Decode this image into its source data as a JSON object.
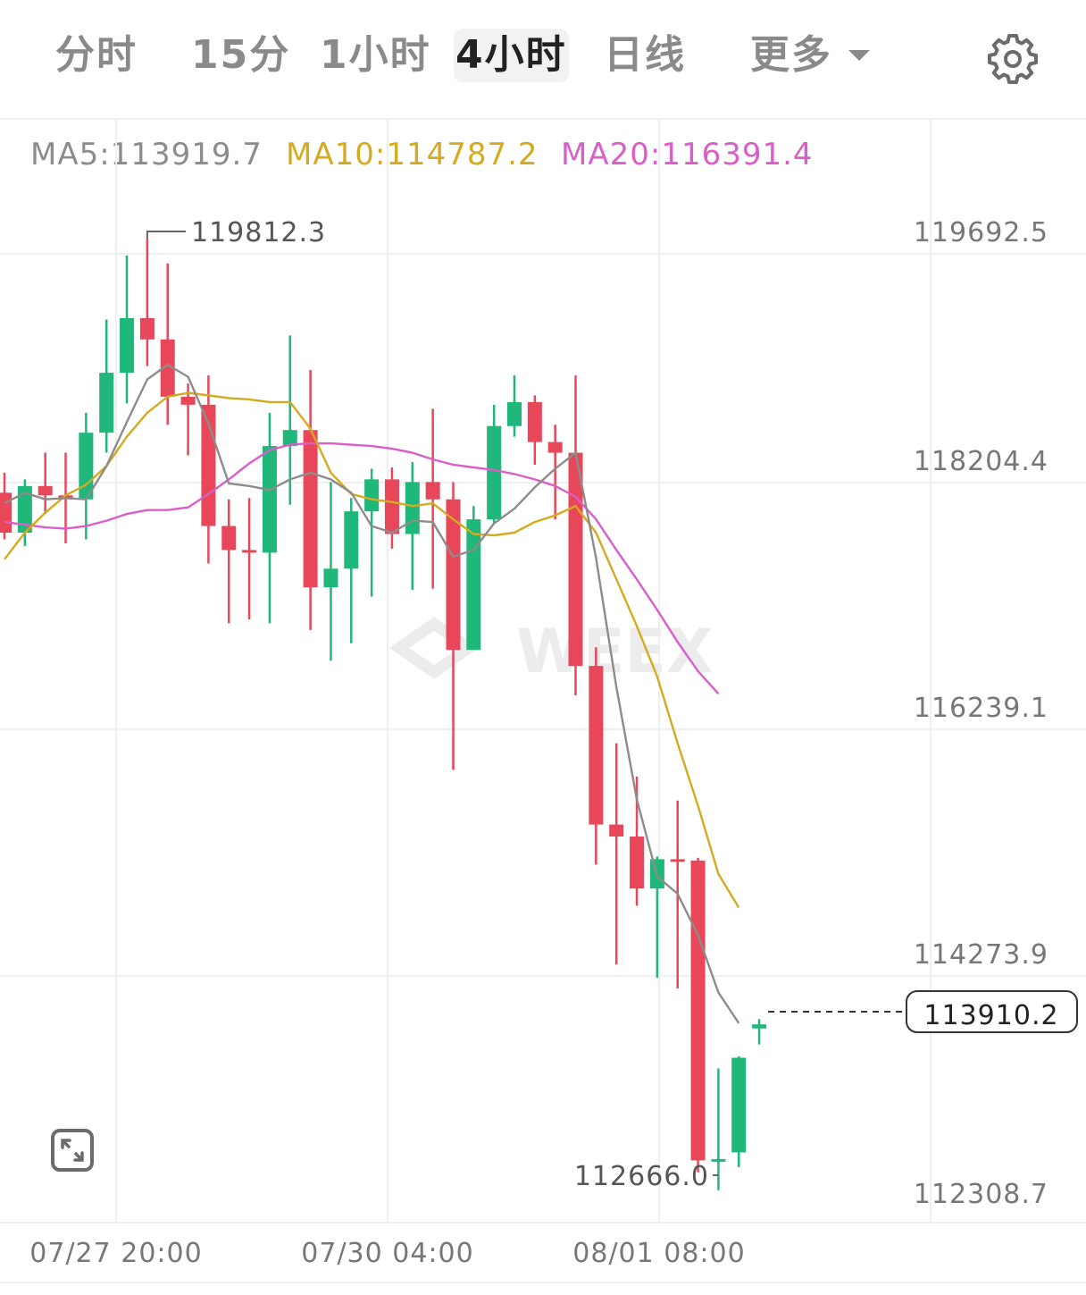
{
  "tabs": [
    {
      "label": "分时",
      "active": false
    },
    {
      "label": "15分",
      "active": false
    },
    {
      "label": "1小时",
      "active": false
    },
    {
      "label": "4小时",
      "active": true
    },
    {
      "label": "日线",
      "active": false
    },
    {
      "label": "更多",
      "active": false
    }
  ],
  "icons": {
    "settings": "gear-icon",
    "expand": "fullscreen-icon",
    "dropdown": "caret-down-icon"
  },
  "legend": {
    "ma5": "MA5:113919.7",
    "ma10": "MA10:114787.2",
    "ma20": "MA20:116391.4"
  },
  "colors": {
    "up": "#1fb77a",
    "down": "#e8475a",
    "ma5": "#8c8c8c",
    "ma10": "#d4ab1f",
    "ma20": "#db5ec8",
    "grid": "#efefef",
    "text": "#666666"
  },
  "chart_data": {
    "type": "candlestick",
    "interval": "4小时",
    "y_ticks": [
      "119692.5",
      "118204.4",
      "116239.1",
      "114273.9",
      "112308.7"
    ],
    "x_ticks": [
      "07/27 20:00",
      "07/30 04:00",
      "08/01 08:00"
    ],
    "high_label": "119812.3",
    "low_label": "112666.0",
    "last_price": "113910.2",
    "ylim": [
      112150,
      120800
    ],
    "candles": [
      {
        "o": 117900,
        "h": 118050,
        "c": 117600,
        "l": 117550
      },
      {
        "o": 117600,
        "h": 118000,
        "c": 117950,
        "l": 117500
      },
      {
        "o": 117950,
        "h": 118200,
        "c": 117880,
        "l": 117740
      },
      {
        "o": 117880,
        "h": 118200,
        "c": 117850,
        "l": 117520
      },
      {
        "o": 117850,
        "h": 118500,
        "c": 118350,
        "l": 117550
      },
      {
        "o": 118350,
        "h": 119200,
        "c": 118800,
        "l": 118200
      },
      {
        "o": 118800,
        "h": 119680,
        "c": 119210,
        "l": 118570
      },
      {
        "o": 119210,
        "h": 119812.3,
        "c": 119050,
        "l": 118850
      },
      {
        "o": 119050,
        "h": 119620,
        "c": 118620,
        "l": 118410
      },
      {
        "o": 118620,
        "h": 118720,
        "c": 118560,
        "l": 118180
      },
      {
        "o": 118560,
        "h": 118780,
        "c": 117650,
        "l": 117370
      },
      {
        "o": 117650,
        "h": 117850,
        "c": 117470,
        "l": 116920
      },
      {
        "o": 117470,
        "h": 117860,
        "c": 117450,
        "l": 116950
      },
      {
        "o": 117450,
        "h": 118500,
        "c": 118250,
        "l": 116920
      },
      {
        "o": 118250,
        "h": 119080,
        "c": 118370,
        "l": 117810
      },
      {
        "o": 118370,
        "h": 118820,
        "c": 117190,
        "l": 116870
      },
      {
        "o": 117190,
        "h": 117980,
        "c": 117330,
        "l": 116640
      },
      {
        "o": 117330,
        "h": 117860,
        "c": 117760,
        "l": 116770
      },
      {
        "o": 117760,
        "h": 118080,
        "c": 118000,
        "l": 117120
      },
      {
        "o": 118000,
        "h": 118090,
        "c": 117590,
        "l": 117480
      },
      {
        "o": 117590,
        "h": 118130,
        "c": 117980,
        "l": 117170
      },
      {
        "o": 117980,
        "h": 118530,
        "c": 117850,
        "l": 117180
      },
      {
        "o": 117850,
        "h": 117980,
        "c": 116720,
        "l": 115820
      },
      {
        "o": 116720,
        "h": 117800,
        "c": 117700,
        "l": 116760
      },
      {
        "o": 117700,
        "h": 118560,
        "c": 118400,
        "l": 117670
      },
      {
        "o": 118400,
        "h": 118780,
        "c": 118580,
        "l": 118320
      },
      {
        "o": 118580,
        "h": 118630,
        "c": 118280,
        "l": 118110
      },
      {
        "o": 118280,
        "h": 118410,
        "c": 118200,
        "l": 117700
      },
      {
        "o": 118200,
        "h": 118780,
        "c": 116600,
        "l": 116380
      },
      {
        "o": 116600,
        "h": 116740,
        "c": 115410,
        "l": 115110
      },
      {
        "o": 115410,
        "h": 116020,
        "c": 115320,
        "l": 114360
      },
      {
        "o": 115320,
        "h": 115770,
        "c": 114930,
        "l": 114800
      },
      {
        "o": 114930,
        "h": 115170,
        "c": 115150,
        "l": 114260
      },
      {
        "o": 115150,
        "h": 115590,
        "c": 115140,
        "l": 114180
      },
      {
        "o": 115140,
        "h": 115160,
        "c": 112890,
        "l": 112800
      },
      {
        "o": 112890,
        "h": 113580,
        "c": 112900,
        "l": 112666.0
      },
      {
        "o": 112950,
        "h": 113670,
        "c": 113660,
        "l": 112840
      },
      {
        "o": 113880,
        "h": 113950,
        "c": 113910.2,
        "l": 113760
      }
    ],
    "ma5": [
      117820,
      117900,
      117850,
      117860,
      117850,
      118100,
      118430,
      118750,
      118860,
      118770,
      118420,
      117970,
      117950,
      117920,
      118000,
      118050,
      118000,
      117900,
      117650,
      117600,
      117690,
      117680,
      117420,
      117470,
      117670,
      117780,
      117940,
      118080,
      118200,
      117410,
      116440,
      115600,
      115020,
      114890,
      114580,
      114150,
      113919.7
    ],
    "ma10": [
      117400,
      117600,
      117750,
      117880,
      117960,
      118100,
      118320,
      118500,
      118620,
      118650,
      118630,
      118610,
      118600,
      118580,
      118580,
      118380,
      118050,
      117890,
      117850,
      117830,
      117800,
      117820,
      117700,
      117590,
      117580,
      117600,
      117680,
      117730,
      117800,
      117600,
      117250,
      116900,
      116520,
      116020,
      115550,
      115040,
      114787.2
    ],
    "ma20": [
      117680,
      117660,
      117640,
      117630,
      117650,
      117690,
      117740,
      117770,
      117770,
      117790,
      117890,
      118000,
      118120,
      118220,
      118260,
      118270,
      118270,
      118260,
      118250,
      118230,
      118200,
      118150,
      118110,
      118090,
      118070,
      118040,
      118000,
      117950,
      117870,
      117700,
      117470,
      117250,
      117020,
      116780,
      116560,
      116391.4
    ],
    "watermark": "WEEX"
  }
}
